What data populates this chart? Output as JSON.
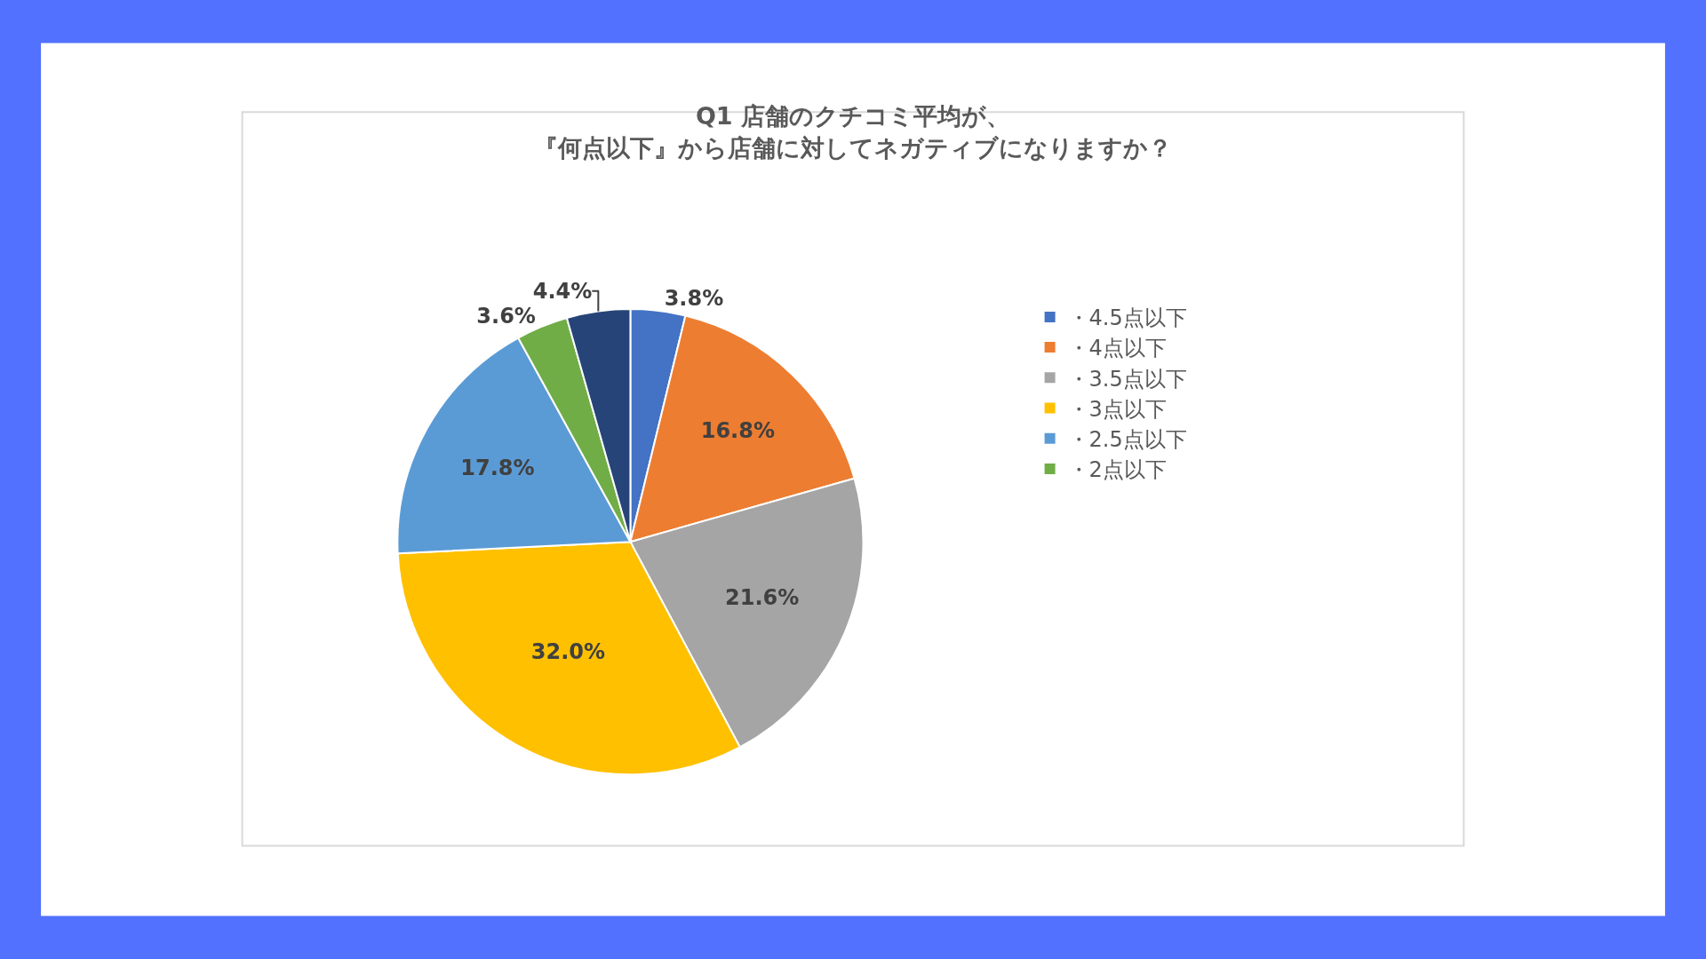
{
  "chart_data": {
    "type": "pie",
    "title": "Q1 店舗のクチコミ平均が、",
    "subtitle": "『何点以下』から店舗に対してネガティブになりますか？",
    "categories": [
      "・4.5点以下",
      "・4点以下",
      "・3.5点以下",
      "・3点以下",
      "・2.5点以下",
      "・2点以下",
      null
    ],
    "values": [
      3.8,
      16.8,
      21.6,
      32.0,
      17.8,
      3.6,
      4.4
    ],
    "colors": [
      "#4472c4",
      "#ed7d31",
      "#a5a5a5",
      "#ffc000",
      "#5b9bd5",
      "#70ad47",
      "#264478"
    ],
    "value_labels": [
      "3.8%",
      "16.8%",
      "21.6%",
      "32.0%",
      "17.8%",
      "3.6%",
      "4.4%"
    ],
    "legend": "right"
  }
}
